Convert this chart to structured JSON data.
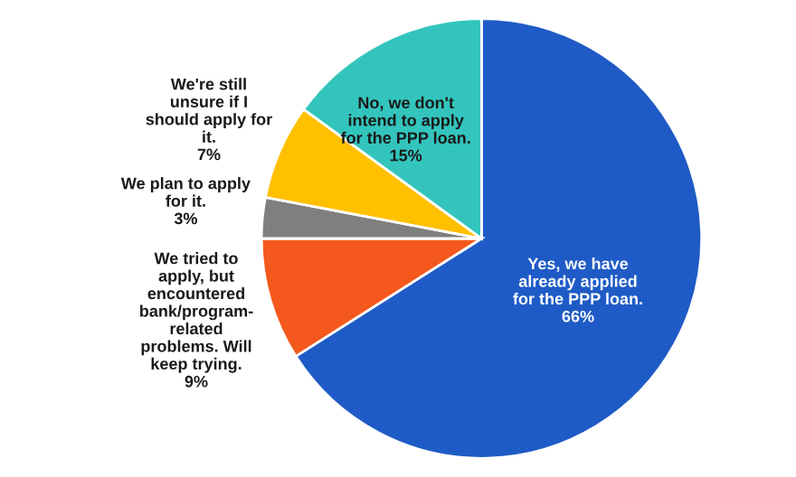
{
  "chart_data": {
    "type": "pie",
    "categories": [
      "Yes, we have\nalready applied\nfor the PPP loan.",
      "We tried to\napply, but\nencountered\nbank/program-\nrelated\nproblems. Will\nkeep trying.",
      "We plan to apply\nfor it.",
      "We're still\nunsure if I\nshould apply for\nit.",
      "No, we don't\nintend to apply\nfor the PPP loan."
    ],
    "values": [
      66,
      9,
      3,
      7,
      15
    ],
    "colors": [
      "#1f5bc6",
      "#f4581c",
      "#7f7f7f",
      "#ffc000",
      "#33c5bd"
    ],
    "value_labels": [
      "66%",
      "9%",
      "3%",
      "7%",
      "15%"
    ]
  }
}
